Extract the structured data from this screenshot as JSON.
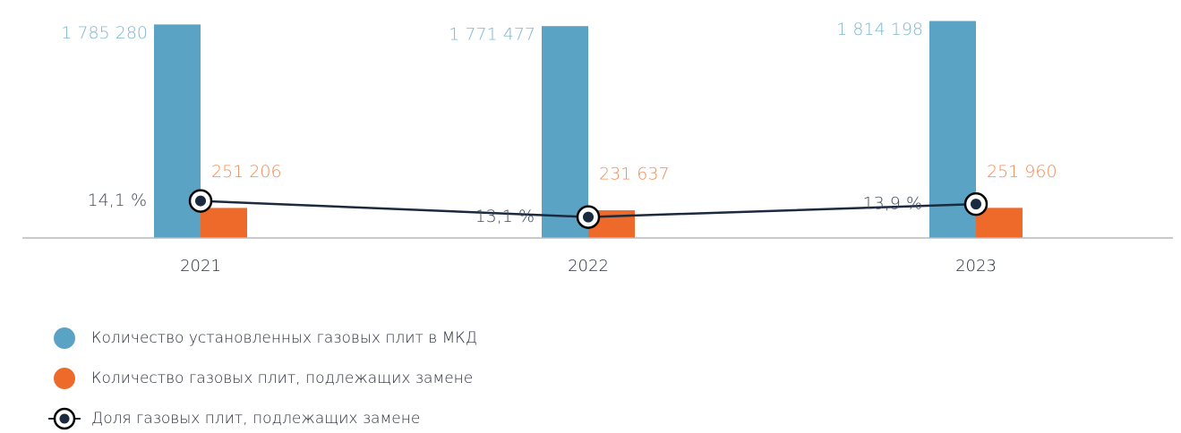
{
  "chart_data": {
    "type": "bar",
    "categories": [
      "2021",
      "2022",
      "2023"
    ],
    "series": [
      {
        "name": "Количество установленных газовых плит в МКД",
        "color": "#5ba3c4",
        "label_color": "#7db7d3",
        "values": [
          1785280,
          1771477,
          1814198
        ],
        "value_labels": [
          "1 785 280",
          "1 771 477",
          "1 814 198"
        ]
      },
      {
        "name": "Количество газовых плит, подлежащих замене",
        "color": "#ee6a2b",
        "label_color": "#ef8d58",
        "values": [
          251206,
          231637,
          251960
        ],
        "value_labels": [
          "251 206",
          "231 637",
          "251 960"
        ]
      },
      {
        "name": "Доля газовых плит, подлежащих замене",
        "type": "line",
        "axis": "y2",
        "color": "#1b2a3f",
        "label_color": "#3d4a5c",
        "values": [
          14.1,
          13.1,
          13.9
        ],
        "value_labels": [
          "14,1 %",
          "13,1 %",
          "13,9 %"
        ]
      }
    ],
    "ylim": [
      0,
      1900000
    ],
    "y2lim": [
      11.8,
      25.9
    ]
  }
}
